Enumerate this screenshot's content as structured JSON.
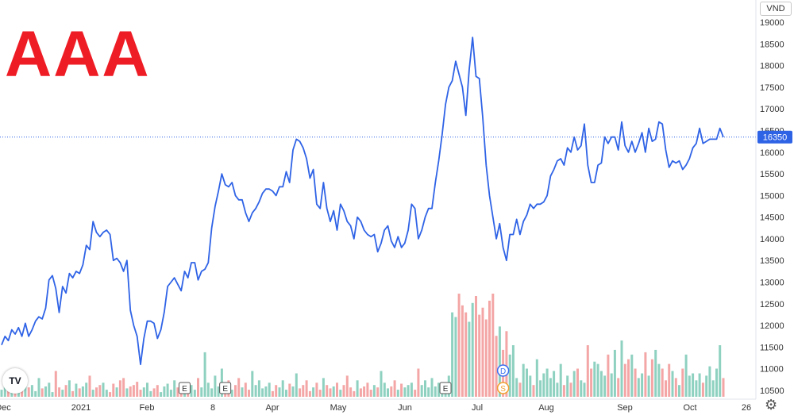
{
  "ticker": "AAA",
  "currency": "VND",
  "last_price_label": "16350",
  "icons": {
    "settings": "gear-icon",
    "logo": "tradingview-logo-icon"
  },
  "colors": {
    "line": "#2f63e6",
    "last_price_bg": "#2f63e6",
    "vol_up": "#8fd1c0",
    "vol_down": "#f4a6a6",
    "ticker": "#ee1c25"
  },
  "chart_data": {
    "type": "line",
    "title": "",
    "xlabel": "",
    "ylabel": "",
    "ylim": [
      10300,
      19100
    ],
    "yticks": [
      10500,
      11000,
      11500,
      12000,
      12500,
      13000,
      13500,
      14000,
      14500,
      15000,
      15500,
      16000,
      16500,
      17000,
      17500,
      18000,
      18500,
      19000
    ],
    "x_tick_labels": [
      "Dec",
      "2021",
      "Feb",
      "8",
      "Apr",
      "May",
      "Jun",
      "Jul",
      "Aug",
      "Sep",
      "Oct",
      "26"
    ],
    "grid": false,
    "legend": "none",
    "price_series": {
      "name": "",
      "values": [
        11550,
        11750,
        11650,
        11900,
        11800,
        11950,
        11750,
        12050,
        11750,
        11900,
        12100,
        12200,
        12150,
        12400,
        13050,
        13150,
        12850,
        12300,
        12900,
        12750,
        13200,
        13100,
        13250,
        13200,
        13400,
        13850,
        13750,
        14400,
        14150,
        14050,
        14150,
        14200,
        14100,
        13500,
        13550,
        13450,
        13250,
        13500,
        12350,
        12000,
        11750,
        11100,
        11700,
        12100,
        12100,
        12050,
        11700,
        11900,
        12300,
        12900,
        13000,
        13100,
        12950,
        12800,
        13250,
        13100,
        13450,
        13450,
        13050,
        13250,
        13300,
        13450,
        14250,
        14750,
        15100,
        15500,
        15250,
        15200,
        15300,
        15000,
        14900,
        14900,
        14600,
        14400,
        14600,
        14700,
        14850,
        15050,
        15150,
        15150,
        15100,
        15000,
        15200,
        15200,
        15550,
        15300,
        16050,
        16300,
        16250,
        16100,
        15850,
        15400,
        15600,
        14800,
        14700,
        15300,
        14700,
        14400,
        14650,
        14200,
        14800,
        14650,
        14400,
        14300,
        14000,
        14500,
        14400,
        14200,
        14100,
        14050,
        14100,
        13700,
        13900,
        14200,
        14300,
        13950,
        13800,
        14050,
        13800,
        13900,
        14200,
        14800,
        14700,
        14000,
        14200,
        14500,
        14700,
        14700,
        15300,
        15800,
        16400,
        17100,
        17500,
        17650,
        18100,
        17800,
        17500,
        16850,
        17900,
        18650,
        17750,
        17700,
        16800,
        15700,
        15000,
        14500,
        14000,
        14350,
        13800,
        13500,
        14100,
        14100,
        14450,
        14100,
        14400,
        14550,
        14800,
        14700,
        14800,
        14800,
        14850,
        15000,
        15450,
        15600,
        15800,
        15850,
        15700,
        16100,
        16000,
        16350,
        16050,
        16150,
        16650,
        15700,
        15300,
        15300,
        15700,
        15750,
        16350,
        16200,
        16350,
        16350,
        16050,
        16700,
        16150,
        16000,
        16250,
        16000,
        16200,
        16450,
        16000,
        16550,
        16250,
        16300,
        16700,
        16650,
        16050,
        15650,
        15800,
        15750,
        15800,
        15600,
        15700,
        15850,
        16100,
        16200,
        16550,
        16200,
        16250,
        16300,
        16300,
        16300,
        16550,
        16350
      ]
    },
    "volume_series": {
      "name": "",
      "values": [
        15,
        22,
        35,
        10,
        18,
        28,
        14,
        30,
        20,
        25,
        12,
        40,
        18,
        22,
        30,
        10,
        55,
        20,
        15,
        25,
        35,
        12,
        28,
        18,
        22,
        30,
        45,
        15,
        20,
        25,
        30,
        15,
        10,
        28,
        20,
        35,
        40,
        18,
        22,
        25,
        32,
        15,
        20,
        30,
        12,
        18,
        25,
        10,
        22,
        28,
        15,
        35,
        20,
        12,
        18,
        30,
        25,
        15,
        40,
        20,
        95,
        30,
        18,
        45,
        22,
        60,
        25,
        35,
        15,
        25,
        40,
        20,
        30,
        15,
        55,
        25,
        35,
        18,
        22,
        30,
        12,
        25,
        20,
        35,
        15,
        28,
        22,
        50,
        18,
        25,
        35,
        12,
        20,
        30,
        15,
        40,
        25,
        18,
        22,
        30,
        15,
        25,
        45,
        20,
        12,
        35,
        18,
        22,
        30,
        15,
        25,
        20,
        55,
        30,
        18,
        22,
        35,
        15,
        28,
        20,
        25,
        30,
        15,
        60,
        25,
        35,
        20,
        40,
        22,
        30,
        25,
        15,
        45,
        180,
        170,
        220,
        195,
        180,
        160,
        200,
        215,
        175,
        190,
        165,
        205,
        220,
        130,
        150,
        100,
        140,
        90,
        110,
        40,
        30,
        70,
        60,
        45,
        25,
        80,
        35,
        50,
        60,
        40,
        55,
        30,
        70,
        25,
        45,
        30,
        55,
        60,
        35,
        30,
        110,
        60,
        75,
        70,
        55,
        45,
        90,
        50,
        100,
        40,
        120,
        70,
        80,
        90,
        60,
        40,
        50,
        95,
        45,
        80,
        100,
        70,
        60,
        35,
        70,
        55,
        40,
        25,
        60,
        90,
        45,
        50,
        35,
        50,
        30,
        45,
        65,
        35,
        60,
        110,
        40
      ]
    },
    "markers": [
      {
        "label": "E",
        "x_index": 54
      },
      {
        "label": "E",
        "x_index": 66
      },
      {
        "label": "E",
        "x_index": 131
      },
      {
        "label": "D",
        "x_index": 148
      },
      {
        "label": "S",
        "x_index": 148
      }
    ]
  }
}
